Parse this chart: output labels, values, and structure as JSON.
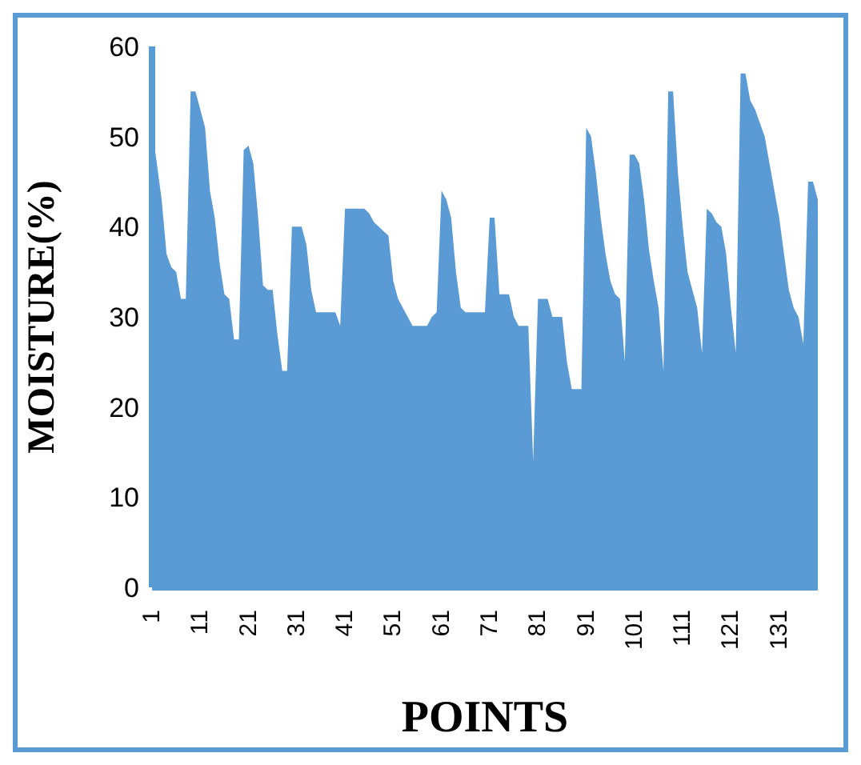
{
  "chart_data": {
    "type": "area",
    "xlabel": "POINTS",
    "ylabel": "MOISTURE(%)",
    "categories": [
      "1",
      null,
      null,
      null,
      null,
      null,
      null,
      null,
      null,
      null,
      "11",
      null,
      null,
      null,
      null,
      null,
      null,
      null,
      null,
      null,
      "21",
      null,
      null,
      null,
      null,
      null,
      null,
      null,
      null,
      null,
      "31",
      null,
      null,
      null,
      null,
      null,
      null,
      null,
      null,
      null,
      "41",
      null,
      null,
      null,
      null,
      null,
      null,
      null,
      null,
      null,
      "51",
      null,
      null,
      null,
      null,
      null,
      null,
      null,
      null,
      null,
      "61",
      null,
      null,
      null,
      null,
      null,
      null,
      null,
      null,
      null,
      "71",
      null,
      null,
      null,
      null,
      null,
      null,
      null,
      null,
      null,
      "81",
      null,
      null,
      null,
      null,
      null,
      null,
      null,
      null,
      null,
      "91",
      null,
      null,
      null,
      null,
      null,
      null,
      null,
      null,
      null,
      "101",
      null,
      null,
      null,
      null,
      null,
      null,
      null,
      null,
      null,
      "111",
      null,
      null,
      null,
      null,
      null,
      null,
      null,
      null,
      null,
      "121",
      null,
      null,
      null,
      null,
      null,
      null,
      null,
      null,
      null,
      "131",
      null,
      null,
      null,
      null,
      null,
      null,
      null,
      null
    ],
    "series": [
      {
        "color": "#5b9bd5",
        "values": [
          51,
          47,
          43,
          37,
          35.5,
          35,
          32,
          32,
          55,
          55,
          53,
          51,
          44,
          41,
          36,
          32.5,
          32,
          27.5,
          27.5,
          48.5,
          49,
          47,
          41,
          33.5,
          33,
          33,
          28,
          24,
          24,
          40,
          40,
          40,
          38,
          33,
          30.5,
          30.5,
          30.5,
          30.5,
          30.5,
          29,
          42,
          42,
          42,
          42,
          42,
          41.5,
          40.5,
          40,
          39.5,
          39,
          34,
          32,
          31,
          30,
          29,
          29,
          29,
          29,
          30,
          30.5,
          44,
          43,
          41,
          35,
          31,
          30.5,
          30.5,
          30.5,
          30.5,
          30.5,
          41,
          41,
          32.5,
          32.5,
          32.5,
          30,
          29,
          29,
          29,
          14,
          32,
          32,
          32,
          30,
          30,
          30,
          25,
          22,
          22,
          22,
          51,
          50,
          46,
          41,
          37,
          34,
          32.5,
          32,
          25,
          48,
          48,
          47,
          43,
          37.5,
          34,
          31,
          24,
          55,
          55,
          46,
          40,
          35,
          33,
          31,
          26,
          42,
          41.5,
          40.5,
          40,
          37,
          31,
          26,
          57,
          57,
          54,
          53,
          51.5,
          50,
          47,
          44,
          41,
          37,
          33,
          31,
          30,
          27,
          45,
          45,
          43
        ]
      }
    ],
    "ylim": [
      0,
      60
    ],
    "yticks": [
      0,
      10,
      20,
      30,
      40,
      50,
      60
    ],
    "grid": false,
    "legend": false
  }
}
